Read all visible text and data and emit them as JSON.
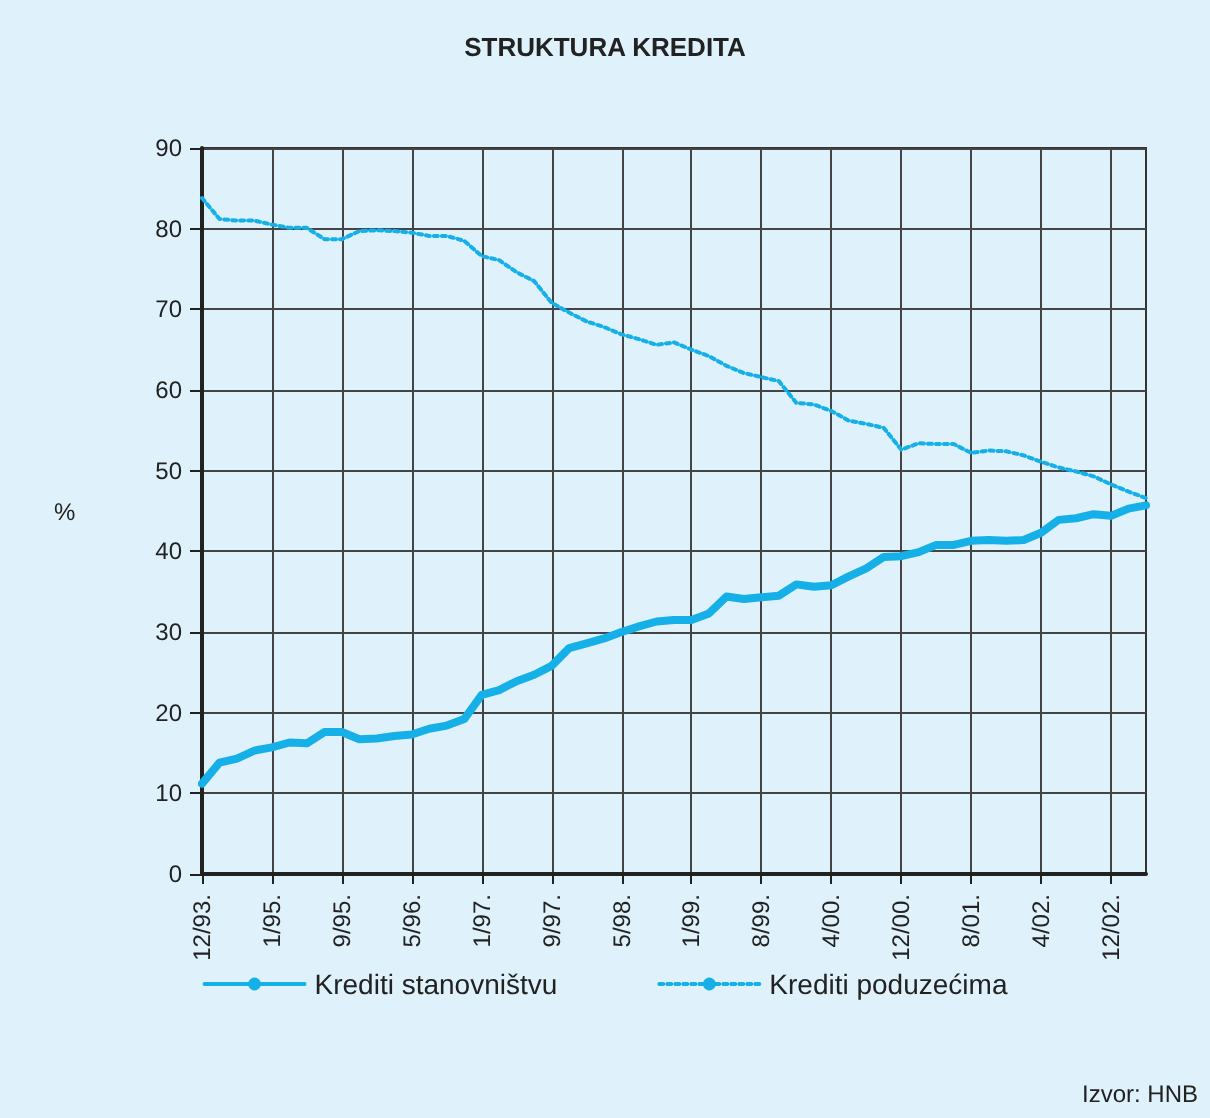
{
  "chart_data": {
    "type": "line",
    "title": "STRUKTURA KREDITA",
    "ylabel": "%",
    "categories": [
      "12/93.",
      null,
      null,
      null,
      "1/95.",
      null,
      null,
      null,
      "9/95.",
      null,
      null,
      null,
      "5/96.",
      null,
      null,
      null,
      "1/97.",
      null,
      null,
      null,
      "9/97.",
      null,
      null,
      null,
      "5/98.",
      null,
      null,
      null,
      "1/99.",
      null,
      null,
      null,
      "8/99.",
      null,
      null,
      null,
      "4/00.",
      null,
      null,
      null,
      "12/00.",
      null,
      null,
      null,
      "8/01.",
      null,
      null,
      null,
      "4/02.",
      null,
      null,
      null,
      "12/02.",
      null,
      null
    ],
    "series": [
      {
        "name": "Krediti stanovništvu",
        "color": "#16b0e8",
        "line_style": "solid",
        "values": [
          11.2,
          13.8,
          14.3,
          15.3,
          15.7,
          16.3,
          16.2,
          17.6,
          17.6,
          16.7,
          16.8,
          17.1,
          17.3,
          18.0,
          18.4,
          19.2,
          22.2,
          22.8,
          23.9,
          24.7,
          25.8,
          28.0,
          28.6,
          29.2,
          30.0,
          30.7,
          31.3,
          31.5,
          31.5,
          32.3,
          34.4,
          34.1,
          34.3,
          34.5,
          35.9,
          35.6,
          35.8,
          36.9,
          37.9,
          39.3,
          39.4,
          39.9,
          40.8,
          40.8,
          41.3,
          41.4,
          41.3,
          41.4,
          42.3,
          43.9,
          44.1,
          44.6,
          44.4,
          45.3,
          45.7
        ]
      },
      {
        "name": "Krediti poduzećima",
        "color": "#16b0e8",
        "line_style": "dotted",
        "values": [
          83.8,
          81.2,
          81.0,
          81.0,
          80.5,
          80.1,
          80.1,
          78.7,
          78.7,
          79.7,
          79.8,
          79.7,
          79.5,
          79.1,
          79.1,
          78.5,
          76.6,
          76.1,
          74.6,
          73.5,
          70.8,
          69.6,
          68.5,
          67.8,
          66.9,
          66.3,
          65.6,
          65.9,
          65.0,
          64.2,
          63.0,
          62.1,
          61.6,
          61.1,
          58.4,
          58.2,
          57.4,
          56.2,
          55.8,
          55.3,
          52.6,
          53.4,
          53.3,
          53.3,
          52.2,
          52.5,
          52.4,
          51.9,
          51.1,
          50.4,
          49.9,
          49.3,
          48.3,
          47.4,
          46.6
        ]
      }
    ],
    "ylim": [
      0,
      90
    ],
    "yticks": [
      0,
      10,
      20,
      30,
      40,
      50,
      60,
      70,
      80,
      90
    ],
    "grid": true,
    "legend": "bottom",
    "marker": "none",
    "annotations": [
      "Izvor: HNB"
    ]
  }
}
